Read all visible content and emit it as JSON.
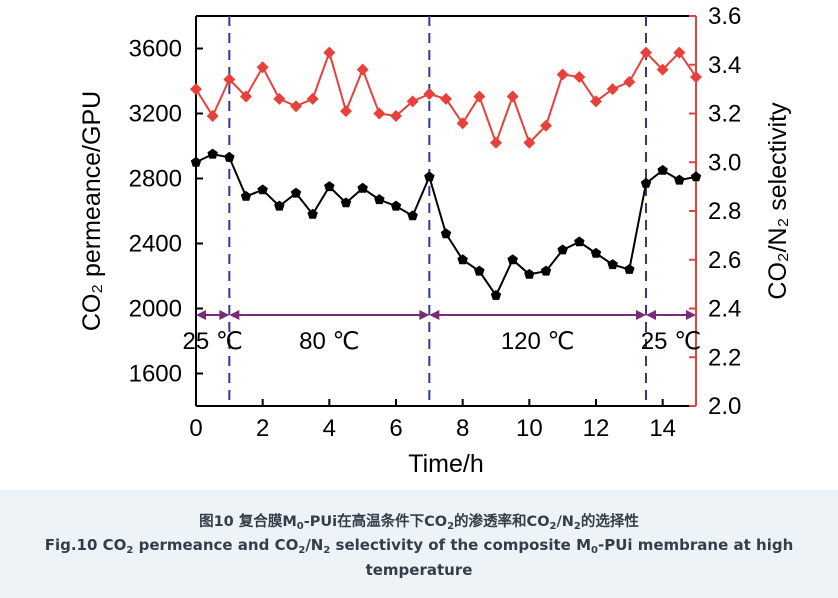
{
  "colors": {
    "permeance_series": "#000000",
    "selectivity_series": "#e8403a",
    "left_axis": "#000000",
    "right_axis": "#e8403a",
    "dashed_lines": "#2e3b8c",
    "range_arrows": "#7b2a78",
    "caption_bg": "#eef3f8",
    "caption_text": "#333e4a"
  },
  "chart_data": {
    "type": "line",
    "x_label": "Time/h",
    "y_left_label": "CO₂ permeance/GPU",
    "y_right_label": "CO₂/N₂ selectivity",
    "xlim": [
      0,
      15
    ],
    "ylim_left": [
      1400,
      3800
    ],
    "ylim_right": [
      2.0,
      3.6
    ],
    "x_ticks": [
      0,
      2,
      4,
      6,
      8,
      10,
      12,
      14
    ],
    "y_left_ticks": [
      1600,
      2000,
      2400,
      2800,
      3200,
      3600
    ],
    "y_right_ticks": [
      2.0,
      2.2,
      2.4,
      2.6,
      2.8,
      3.0,
      3.2,
      3.4,
      3.6
    ],
    "grid": false,
    "dashed_x": [
      1,
      7,
      13.5
    ],
    "range_arrow_y_left": 1960,
    "segments": [
      {
        "from": 0,
        "to": 1,
        "label": "25 ℃"
      },
      {
        "from": 1,
        "to": 7,
        "label": "80 ℃"
      },
      {
        "from": 7,
        "to": 13.5,
        "label": "120 ℃"
      },
      {
        "from": 13.5,
        "to": 15,
        "label": "25 ℃"
      }
    ],
    "series": [
      {
        "marker": "pentagon",
        "axis": "left",
        "x": [
          0,
          0.5,
          1,
          1.5,
          2,
          2.5,
          3,
          3.5,
          4,
          4.5,
          5,
          5.5,
          6,
          6.5,
          7,
          7.5,
          8,
          8.5,
          9,
          9.5,
          10,
          10.5,
          11,
          11.5,
          12,
          12.5,
          13,
          13.5,
          14,
          14.5,
          15
        ],
        "values": [
          2900,
          2950,
          2930,
          2690,
          2730,
          2630,
          2710,
          2580,
          2750,
          2650,
          2740,
          2670,
          2630,
          2570,
          2810,
          2460,
          2300,
          2230,
          2080,
          2300,
          2210,
          2230,
          2360,
          2410,
          2340,
          2270,
          2240,
          2770,
          2850,
          2790,
          2810
        ]
      },
      {
        "marker": "diamond",
        "axis": "right",
        "x": [
          0,
          0.5,
          1,
          1.5,
          2,
          2.5,
          3,
          3.5,
          4,
          4.5,
          5,
          5.5,
          6,
          6.5,
          7,
          7.5,
          8,
          8.5,
          9,
          9.5,
          10,
          10.5,
          11,
          11.5,
          12,
          12.5,
          13,
          13.5,
          14,
          14.5,
          15
        ],
        "values": [
          3.3,
          3.19,
          3.34,
          3.27,
          3.39,
          3.26,
          3.23,
          3.26,
          3.45,
          3.21,
          3.38,
          3.2,
          3.19,
          3.25,
          3.28,
          3.26,
          3.16,
          3.27,
          3.08,
          3.27,
          3.08,
          3.15,
          3.36,
          3.35,
          3.25,
          3.3,
          3.33,
          3.45,
          3.38,
          3.45,
          3.35
        ]
      }
    ]
  },
  "caption": {
    "cn_a": "图10 复合膜M",
    "cn_s1": "0",
    "cn_b": "-PUi在高温条件下CO",
    "cn_s2": "2",
    "cn_c": "的渗透率和CO",
    "cn_s3": "2",
    "cn_d": "/N",
    "cn_s4": "2",
    "cn_e": "的选择性",
    "en_a": "Fig.10 CO",
    "en_s1": "2",
    "en_b": " permeance and CO",
    "en_s2": "2",
    "en_c": "/N",
    "en_s3": "2",
    "en_d": " selectivity of the composite M",
    "en_s4": "0",
    "en_e": "-PUi membrane at high",
    "en_line2": "temperature"
  }
}
